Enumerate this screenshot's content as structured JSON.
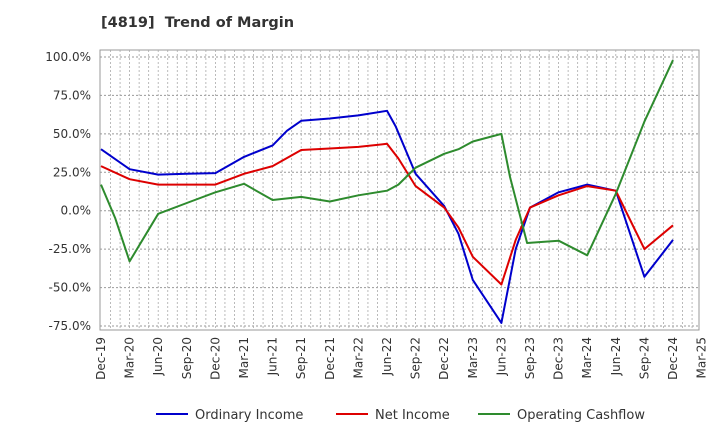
{
  "chart_data": {
    "type": "line",
    "title": "[4819]  Trend of Margin",
    "xlabel": "",
    "ylabel": "",
    "ylim": [
      -75,
      100
    ],
    "y_ticks": [
      "100.0%",
      "75.0%",
      "50.0%",
      "25.0%",
      "0.0%",
      "-25.0%",
      "-50.0%",
      "-75.0%"
    ],
    "y_tick_values": [
      100,
      75,
      50,
      25,
      0,
      -25,
      -50,
      -75
    ],
    "x_ticks": [
      "Dec-19",
      "Mar-20",
      "Jun-20",
      "Sep-20",
      "Dec-20",
      "Mar-21",
      "Jun-21",
      "Sep-21",
      "Dec-21",
      "Mar-22",
      "Jun-22",
      "Sep-22",
      "Dec-22",
      "Mar-23",
      "Jun-23",
      "Sep-23",
      "Dec-23",
      "Mar-24",
      "Jun-24",
      "Sep-24",
      "Dec-24",
      "Mar-25"
    ],
    "grid": true,
    "legend_position": "bottom",
    "series": [
      {
        "name": "Ordinary Income",
        "color": "#0000cc",
        "points": [
          [
            0,
            40
          ],
          [
            1,
            27
          ],
          [
            2,
            23.5
          ],
          [
            3,
            24
          ],
          [
            4,
            24.5
          ],
          [
            5,
            35
          ],
          [
            6,
            42.5
          ],
          [
            6.5,
            52
          ],
          [
            7,
            58.5
          ],
          [
            8,
            60
          ],
          [
            9,
            62
          ],
          [
            10,
            65
          ],
          [
            10.3,
            55
          ],
          [
            11,
            24
          ],
          [
            12,
            3
          ],
          [
            12.5,
            -15
          ],
          [
            13,
            -45
          ],
          [
            14,
            -73
          ],
          [
            14.5,
            -25
          ],
          [
            15,
            2
          ],
          [
            16,
            12
          ],
          [
            17,
            17
          ],
          [
            18,
            13
          ],
          [
            19,
            -43
          ],
          [
            20,
            -19
          ]
        ]
      },
      {
        "name": "Net Income",
        "color": "#dd0000",
        "points": [
          [
            0,
            29
          ],
          [
            1,
            20.5
          ],
          [
            2,
            17
          ],
          [
            3,
            17
          ],
          [
            4,
            17
          ],
          [
            5,
            24
          ],
          [
            6,
            29
          ],
          [
            7,
            39.5
          ],
          [
            8,
            40.5
          ],
          [
            9,
            41.5
          ],
          [
            10,
            43.5
          ],
          [
            10.4,
            34
          ],
          [
            11,
            16
          ],
          [
            12,
            2
          ],
          [
            12.5,
            -11
          ],
          [
            13,
            -30
          ],
          [
            14,
            -48
          ],
          [
            14.5,
            -19
          ],
          [
            15,
            2
          ],
          [
            16,
            10
          ],
          [
            17,
            16
          ],
          [
            18,
            13
          ],
          [
            19,
            -25
          ],
          [
            20,
            -9.5
          ]
        ]
      },
      {
        "name": "Operating Cashflow",
        "color": "#2e8b2e",
        "points": [
          [
            0,
            17
          ],
          [
            0.5,
            -5
          ],
          [
            1,
            -33
          ],
          [
            2,
            -2
          ],
          [
            3,
            5
          ],
          [
            4,
            12
          ],
          [
            5,
            17.5
          ],
          [
            6,
            7
          ],
          [
            7,
            9
          ],
          [
            8,
            6
          ],
          [
            9,
            10
          ],
          [
            10,
            13
          ],
          [
            10.4,
            17
          ],
          [
            11,
            28
          ],
          [
            12,
            37
          ],
          [
            12.5,
            40
          ],
          [
            13,
            45
          ],
          [
            14,
            50
          ],
          [
            14.3,
            22
          ],
          [
            14.9,
            -21
          ],
          [
            16,
            -19.5
          ],
          [
            17,
            -29
          ],
          [
            18,
            11
          ],
          [
            19,
            58
          ],
          [
            20,
            98
          ]
        ]
      }
    ]
  }
}
